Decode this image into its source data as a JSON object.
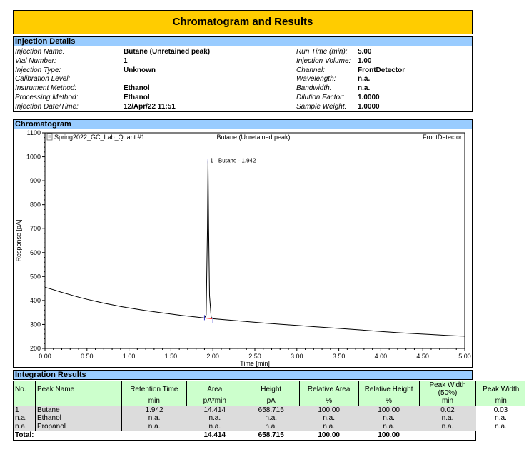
{
  "title": "Chromatogram and Results",
  "injection": {
    "header": "Injection Details",
    "left": [
      {
        "label": "Injection Name:",
        "value": "Butane (Unretained peak)"
      },
      {
        "label": "Vial Number:",
        "value": "1"
      },
      {
        "label": "Injection Type:",
        "value": "Unknown"
      },
      {
        "label": "Calibration Level:",
        "value": ""
      },
      {
        "label": "Instrument Method:",
        "value": "Ethanol"
      },
      {
        "label": "Processing Method:",
        "value": "Ethanol"
      },
      {
        "label": "Injection Date/Time:",
        "value": "12/Apr/22 11:51"
      }
    ],
    "right": [
      {
        "label": "Run Time (min):",
        "value": "5.00"
      },
      {
        "label": "Injection Volume:",
        "value": "1.00"
      },
      {
        "label": "Channel:",
        "value": "FrontDetector"
      },
      {
        "label": "Wavelength:",
        "value": "n.a."
      },
      {
        "label": "Bandwidth:",
        "value": "n.a."
      },
      {
        "label": "Dilution Factor:",
        "value": "1.0000"
      },
      {
        "label": "Sample Weight:",
        "value": "1.0000"
      }
    ]
  },
  "chromatogram": {
    "header": "Chromatogram",
    "top_left": "Spring2022_GC_Lab_Quant #1",
    "top_center": "Butane (Unretained peak)",
    "top_right": "FrontDetector"
  },
  "chart_data": {
    "type": "line",
    "xlabel": "Time [min]",
    "ylabel": "Response [pA]",
    "xlim": [
      0,
      5
    ],
    "ylim": [
      200,
      1100
    ],
    "x_ticks": [
      "0.00",
      "0.50",
      "1.00",
      "1.50",
      "2.00",
      "2.50",
      "3.00",
      "3.50",
      "4.00",
      "4.50",
      "5.00"
    ],
    "y_ticks": [
      "200",
      "300",
      "400",
      "500",
      "600",
      "700",
      "800",
      "900",
      "1000",
      "1100"
    ],
    "series": [
      {
        "name": "FrontDetector",
        "x": [
          0.0,
          0.1,
          0.2,
          0.3,
          0.4,
          0.5,
          0.6,
          0.7,
          0.8,
          0.9,
          1.0,
          1.2,
          1.4,
          1.6,
          1.8,
          1.9,
          1.92,
          1.935,
          1.942,
          1.95,
          1.96,
          1.98,
          2.0,
          2.2,
          2.4,
          2.6,
          2.8,
          3.0,
          3.2,
          3.4,
          3.6,
          3.8,
          4.0,
          4.2,
          4.4,
          4.6,
          4.8,
          5.0
        ],
        "y": [
          455,
          445,
          434,
          424,
          414,
          405,
          397,
          389,
          382,
          375,
          369,
          358,
          348,
          339,
          331,
          327,
          340,
          700,
          985,
          700,
          420,
          330,
          324,
          318,
          312,
          306,
          301,
          296,
          291,
          286,
          281,
          276,
          271,
          266,
          262,
          258,
          254,
          251
        ]
      }
    ],
    "annotations": [
      {
        "x": 1.942,
        "y": 985,
        "text": "1 - Butane - 1.942"
      }
    ]
  },
  "integration": {
    "header": "Integration Results",
    "columns": [
      {
        "l1": "No.",
        "l2": ""
      },
      {
        "l1": "Peak Name",
        "l2": ""
      },
      {
        "l1": "Retention Time",
        "l2": "min"
      },
      {
        "l1": "Area",
        "l2": "pA*min"
      },
      {
        "l1": "Height",
        "l2": "pA"
      },
      {
        "l1": "Relative Area",
        "l2": "%"
      },
      {
        "l1": "Relative Height",
        "l2": "%"
      },
      {
        "l1": "Peak Width (50%)",
        "l2": "min"
      },
      {
        "l1": "Peak Width",
        "l2": "min"
      }
    ],
    "rows": [
      [
        "1",
        "Butane",
        "1.942",
        "14.414",
        "658.715",
        "100.00",
        "100.00",
        "0.02",
        "0.03"
      ],
      [
        "n.a.",
        "Ethanol",
        "n.a.",
        "n.a.",
        "n.a.",
        "n.a.",
        "n.a.",
        "n.a.",
        "n.a."
      ],
      [
        "n.a.",
        "Propanol",
        "n.a.",
        "n.a.",
        "n.a.",
        "n.a.",
        "n.a.",
        "n.a.",
        "n.a."
      ]
    ],
    "total": {
      "label": "Total:",
      "area": "14.414",
      "height": "658.715",
      "rel_area": "100.00",
      "rel_height": "100.00"
    }
  },
  "colors": {
    "title_bg": "#ffcc00",
    "section_bg": "#99ccff",
    "table_header_bg": "#ccffcc",
    "row_bg": "#dcdcdc"
  }
}
